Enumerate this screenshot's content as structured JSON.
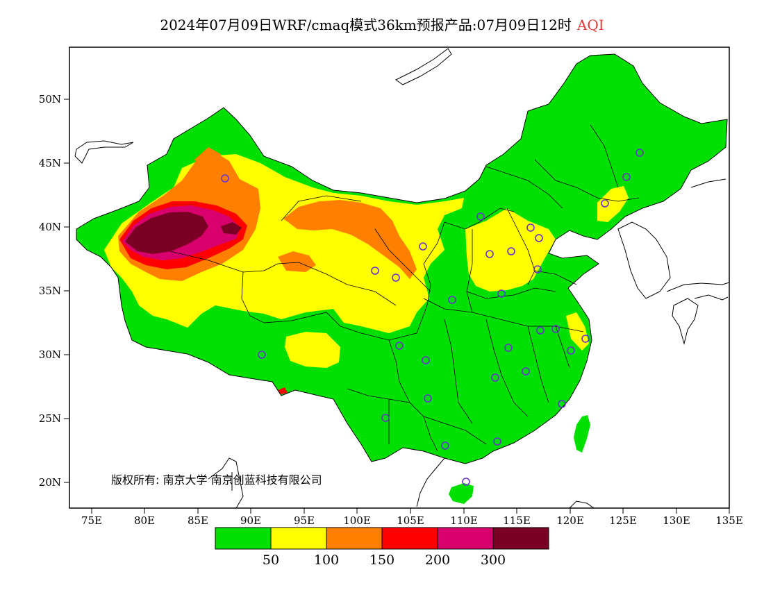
{
  "title": {
    "main": "2024年07月09日WRF/cmaq模式36km预报产品:07月09日12时",
    "variable": "AQI"
  },
  "axes": {
    "lat_labels": [
      "50N",
      "45N",
      "40N",
      "35N",
      "30N",
      "25N",
      "20N"
    ],
    "lon_labels": [
      "75E",
      "80E",
      "85E",
      "90E",
      "95E",
      "100E",
      "105E",
      "110E",
      "115E",
      "120E",
      "125E",
      "130E",
      "135E"
    ]
  },
  "legend": {
    "colors": [
      "#00e000",
      "#ffff00",
      "#ff8000",
      "#ff0000",
      "#d8006c",
      "#7a0024"
    ],
    "labels": [
      "50",
      "100",
      "150",
      "200",
      "300"
    ]
  },
  "copyright": "版权所有: 南京大学 南京创蓝科技有限公司",
  "map_colors": {
    "good": "#00e000",
    "moderate": "#ffff00",
    "usg": "#ff8000",
    "unhealthy": "#ff0000",
    "very_unhealthy": "#d8006c",
    "hazardous": "#7a0024",
    "station_marker": "#6633cc"
  }
}
